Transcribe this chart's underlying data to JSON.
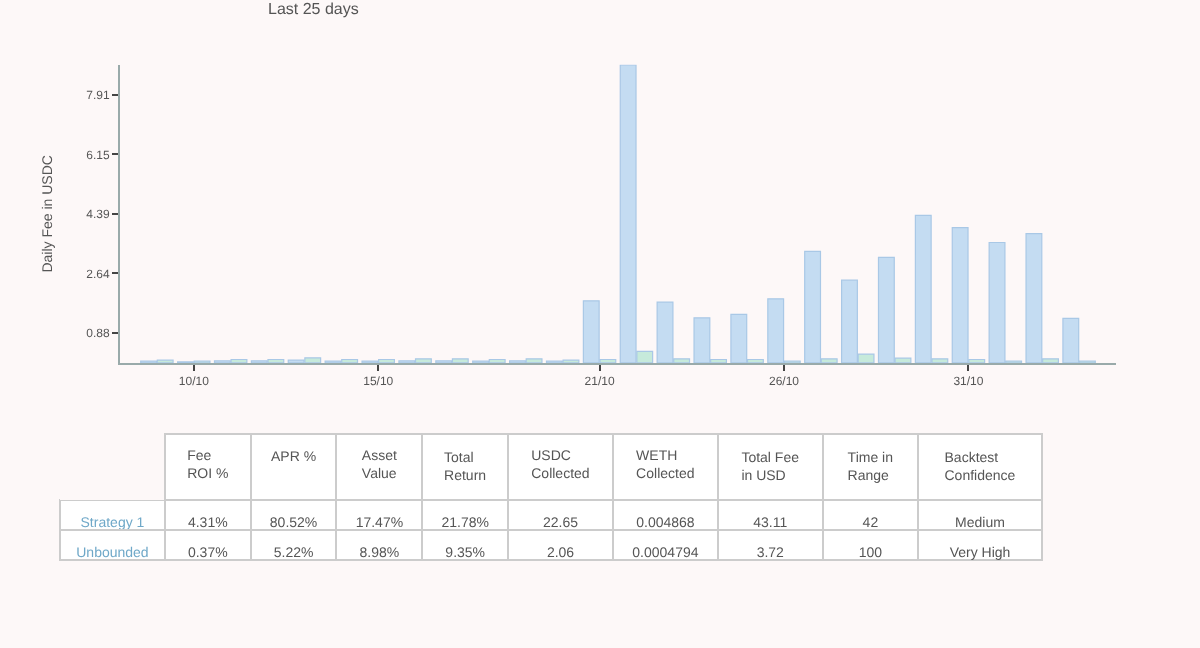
{
  "chart_data": [
    {
      "type": "bar",
      "annotations": [
        "Last 25 days"
      ],
      "ylabel": "Daily Fee in USDC",
      "x": [
        "--10-09",
        "--10-10",
        "--10-11",
        "--10-12",
        "--10-13",
        "--10-14",
        "--10-15",
        "--10-16",
        "--10-17",
        "--10-18",
        "--10-19",
        "--10-20",
        "--10-21",
        "--10-22",
        "--10-23",
        "--10-24",
        "--10-25",
        "--10-26",
        "--10-27",
        "--10-28",
        "--10-29",
        "--10-30",
        "--10-31",
        "--11-01",
        "--11-02",
        "--11-03"
      ],
      "series": [
        {
          "color": "#c4dcf2",
          "values": [
            0.05,
            0.03,
            0.06,
            0.06,
            0.08,
            0.05,
            0.05,
            0.06,
            0.06,
            0.05,
            0.06,
            0.05,
            1.83,
            8.79,
            1.79,
            1.33,
            1.43,
            1.89,
            3.29,
            2.44,
            3.11,
            4.35,
            3.99,
            3.55,
            3.81,
            1.31
          ]
        },
        {
          "color": "#c6eadb",
          "values": [
            0.08,
            0.05,
            0.1,
            0.1,
            0.15,
            0.1,
            0.1,
            0.12,
            0.12,
            0.1,
            0.12,
            0.08,
            0.1,
            0.34,
            0.12,
            0.1,
            0.1,
            0.05,
            0.12,
            0.26,
            0.14,
            0.12,
            0.1,
            0.05,
            0.12,
            0.05
          ]
        }
      ],
      "xlim": [
        "--10-08",
        "--11-04"
      ],
      "xticks": [
        {
          "value": "--10-10",
          "label": "10/10"
        },
        {
          "value": "--10-15",
          "label": "15/10"
        },
        {
          "value": "--10-21",
          "label": "21/10"
        },
        {
          "value": "--10-26",
          "label": "26/10"
        },
        {
          "value": "--10-31",
          "label": "31/10"
        }
      ],
      "ylim": [
        0,
        8.79
      ],
      "yticks": [
        0.88,
        2.64,
        4.39,
        6.15,
        7.91
      ],
      "grid": false
    },
    {
      "type": "other",
      "categories": [
        "Fee ROI %",
        "APR %",
        "Asset Value",
        "Total Return",
        "USDC Collected",
        "WETH Collected",
        "Total Fee in USD",
        "Time in Range",
        "Backtest Confidence"
      ],
      "y_categories": [
        "Strategy 1",
        "Unbounded"
      ],
      "cell_labels": [
        [
          "4.31%",
          "80.52%",
          "17.47%",
          "21.78%",
          "22.65",
          "0.004868",
          "43.11",
          "42",
          "Medium"
        ],
        [
          "0.37%",
          "5.22%",
          "8.98%",
          "9.35%",
          "2.06",
          "0.0004794",
          "3.72",
          "100",
          "Very High"
        ]
      ]
    }
  ]
}
